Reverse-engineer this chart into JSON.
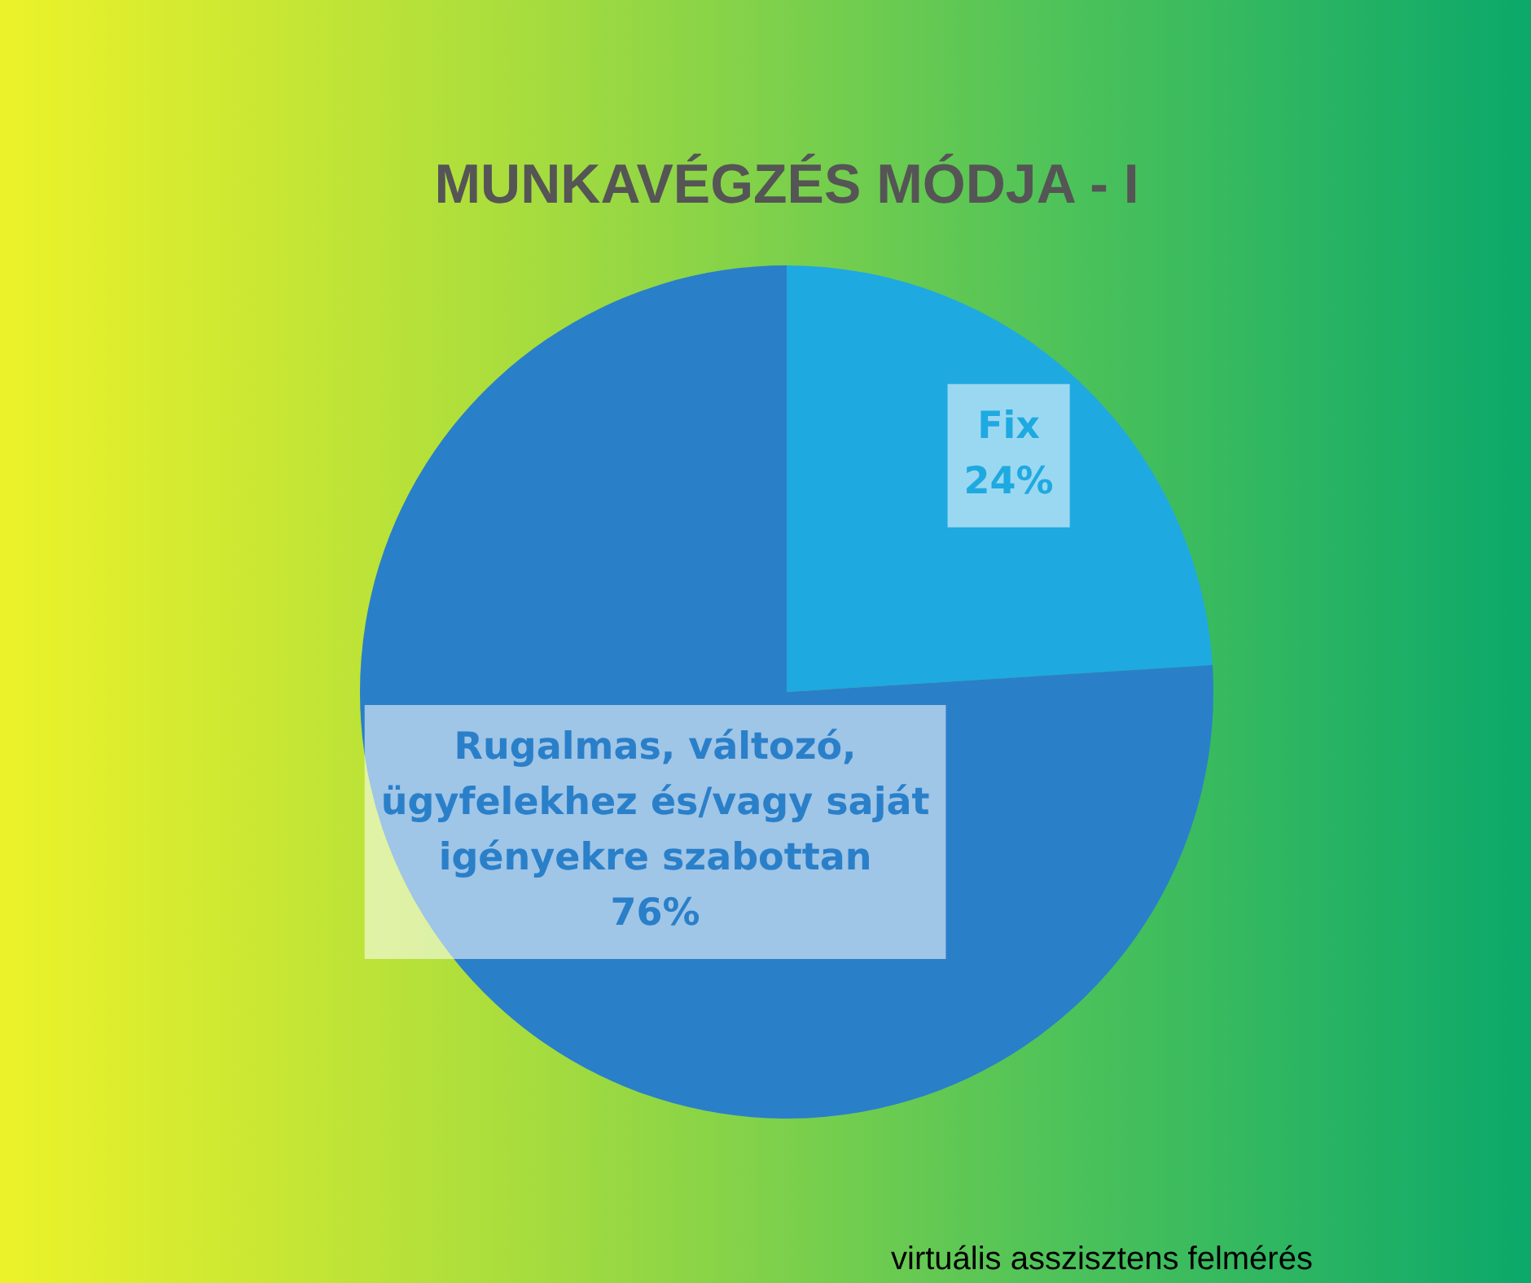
{
  "chart_data": {
    "type": "pie",
    "title": "MUNKAVÉGZÉS MÓDJA - I",
    "categories": [
      "Fix",
      "Rugalmas, változó, ügyfelekhez és/vagy saját igényekre szabottan"
    ],
    "values": [
      24,
      76
    ],
    "colors": [
      "#1fa9e1",
      "#2a7fc9"
    ],
    "value_labels": [
      "24%",
      "76%"
    ],
    "legend": false,
    "annotations": [
      "virtuális asszisztens felmérés"
    ]
  }
}
